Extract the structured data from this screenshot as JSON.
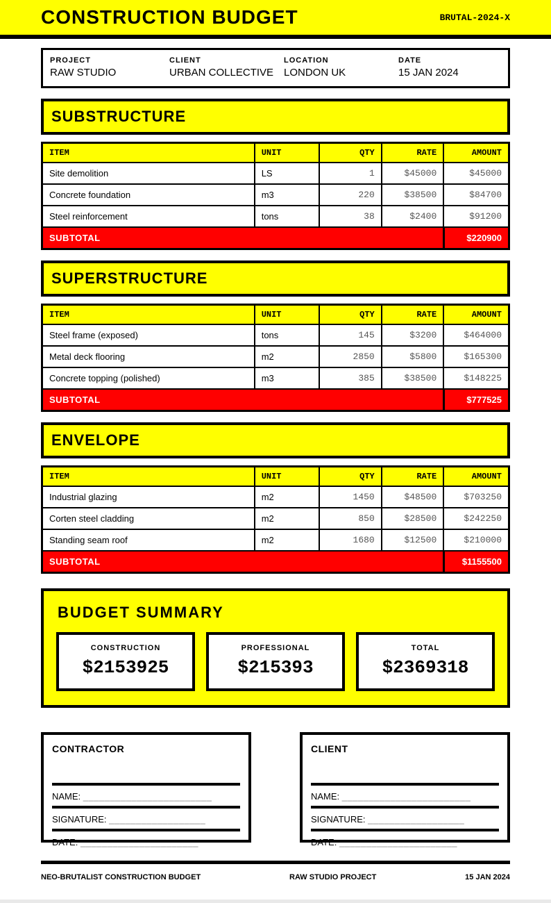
{
  "header": {
    "title": "CONSTRUCTION BUDGET",
    "ref": "BRUTAL-2024-X"
  },
  "project_info": {
    "fields": [
      {
        "label": "PROJECT",
        "value": "RAW STUDIO"
      },
      {
        "label": "CLIENT",
        "value": "URBAN COLLECTIVE"
      },
      {
        "label": "LOCATION",
        "value": "LONDON UK"
      },
      {
        "label": "DATE",
        "value": "15 JAN 2024"
      }
    ]
  },
  "columns": [
    "ITEM",
    "UNIT",
    "QTY",
    "RATE",
    "AMOUNT"
  ],
  "sections": [
    {
      "title": "SUBSTRUCTURE",
      "rows": [
        {
          "item": "Site demolition",
          "unit": "LS",
          "qty": "1",
          "rate": "$45000",
          "amount": "$45000"
        },
        {
          "item": "Concrete foundation",
          "unit": "m3",
          "qty": "220",
          "rate": "$38500",
          "amount": "$84700"
        },
        {
          "item": "Steel reinforcement",
          "unit": "tons",
          "qty": "38",
          "rate": "$2400",
          "amount": "$91200"
        }
      ],
      "subtotal_label": "SUBTOTAL",
      "subtotal": "$220900"
    },
    {
      "title": "SUPERSTRUCTURE",
      "rows": [
        {
          "item": "Steel frame (exposed)",
          "unit": "tons",
          "qty": "145",
          "rate": "$3200",
          "amount": "$464000"
        },
        {
          "item": "Metal deck flooring",
          "unit": "m2",
          "qty": "2850",
          "rate": "$5800",
          "amount": "$165300"
        },
        {
          "item": "Concrete topping (polished)",
          "unit": "m3",
          "qty": "385",
          "rate": "$38500",
          "amount": "$148225"
        }
      ],
      "subtotal_label": "SUBTOTAL",
      "subtotal": "$777525"
    },
    {
      "title": "ENVELOPE",
      "rows": [
        {
          "item": "Industrial glazing",
          "unit": "m2",
          "qty": "1450",
          "rate": "$48500",
          "amount": "$703250"
        },
        {
          "item": "Corten steel cladding",
          "unit": "m2",
          "qty": "850",
          "rate": "$28500",
          "amount": "$242250"
        },
        {
          "item": "Standing seam roof",
          "unit": "m2",
          "qty": "1680",
          "rate": "$12500",
          "amount": "$210000"
        }
      ],
      "subtotal_label": "SUBTOTAL",
      "subtotal": "$1155500"
    }
  ],
  "summary": {
    "title": "BUDGET SUMMARY",
    "cards": [
      {
        "label": "CONSTRUCTION",
        "amount": "$2153925"
      },
      {
        "label": "PROFESSIONAL",
        "amount": "$215393"
      },
      {
        "label": "TOTAL",
        "amount": "$2369318"
      }
    ]
  },
  "signatures": [
    {
      "title": "CONTRACTOR",
      "rows": [
        {
          "label": "NAME:",
          "line": "________________________"
        },
        {
          "label": "SIGNATURE:",
          "line": "__________________"
        },
        {
          "label": "DATE:",
          "line": "______________________"
        }
      ]
    },
    {
      "title": "CLIENT",
      "rows": [
        {
          "label": "NAME:",
          "line": "________________________"
        },
        {
          "label": "SIGNATURE:",
          "line": "__________________"
        },
        {
          "label": "DATE:",
          "line": "______________________"
        }
      ]
    }
  ],
  "footer": {
    "left": "NEO-BRUTALIST CONSTRUCTION BUDGET",
    "center": "RAW STUDIO PROJECT",
    "right": "15 JAN 2024"
  },
  "colors": {
    "accent_yellow": "#FFFF00",
    "subtotal_red": "#FF0000",
    "number_gray": "#555555"
  }
}
